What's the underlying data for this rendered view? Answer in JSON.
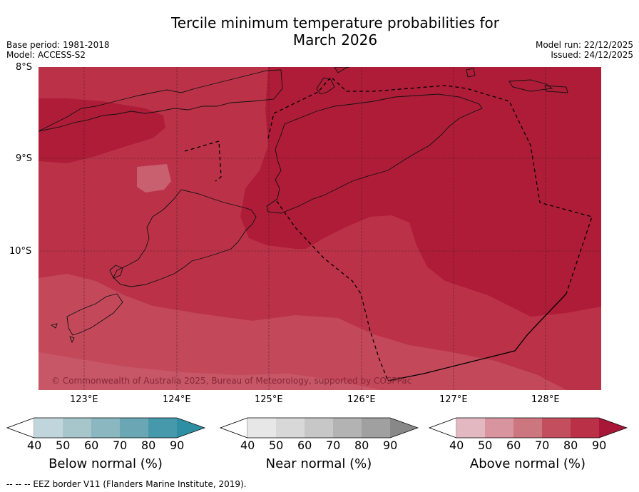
{
  "title_line1": "Tercile minimum temperature probabilities for",
  "title_line2": "March 2026",
  "base_period": "Base period: 1981-2018",
  "model": "Model: ACCESS-S2",
  "model_run": "Model run: 22/12/2025",
  "issued": "Issued: 24/12/2025",
  "lat_labels": [
    "8°S",
    "9°S",
    "10°S"
  ],
  "lon_labels": [
    "123°E",
    "124°E",
    "125°E",
    "126°E",
    "127°E",
    "128°E"
  ],
  "copyright": "© Commonwealth of Australia 2025, Bureau of Meteorology, supported by COSPPac",
  "colorbars": [
    {
      "label": "Below normal (%)",
      "ticks": [
        "40",
        "50",
        "60",
        "70",
        "80",
        "90"
      ],
      "colors": [
        "#c1d6dc",
        "#a6c6cc",
        "#8ab7c0",
        "#6aa6b3",
        "#4599ab"
      ],
      "extend_color": "#2e8fa3"
    },
    {
      "label": "Near normal (%)",
      "ticks": [
        "40",
        "50",
        "60",
        "70",
        "80",
        "90"
      ],
      "colors": [
        "#e7e7e7",
        "#d8d8d8",
        "#c7c7c7",
        "#b3b3b3",
        "#a0a0a0"
      ],
      "extend_color": "#888888"
    },
    {
      "label": "Above normal (%)",
      "ticks": [
        "40",
        "50",
        "60",
        "70",
        "80",
        "90"
      ],
      "colors": [
        "#e3b8c1",
        "#d8949f",
        "#cc7680",
        "#c24e5e",
        "#b93047"
      ],
      "extend_color": "#a81638"
    }
  ],
  "footnote": "--  --  -- EEZ border V11 (Flanders Marine Institute, 2019).",
  "colors": {
    "map_90": "#ae1c38",
    "map_80": "#bb3248",
    "map_70": "#c3495a",
    "map_60": "#c96070"
  }
}
